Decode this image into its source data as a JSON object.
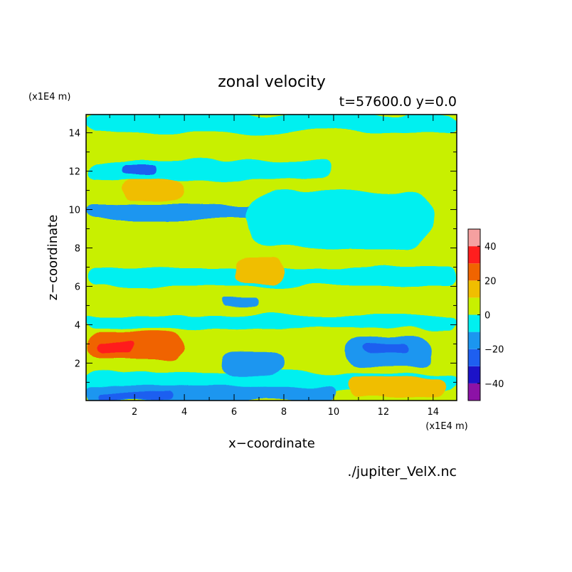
{
  "chart_data": {
    "type": "heatmap",
    "title": "zonal velocity",
    "subtitle": "t=57600.0 y=0.0",
    "xlabel": "x−coordinate",
    "ylabel": "z−coordinate",
    "x_unit": "(x1E4 m)",
    "y_unit": "(x1E4 m)",
    "source": "./jupiter_VelX.nc",
    "xlim": [
      0.05,
      14.95
    ],
    "ylim": [
      0.05,
      14.95
    ],
    "x_ticks": [
      "2",
      "4",
      "6",
      "8",
      "10",
      "12",
      "14"
    ],
    "y_ticks": [
      "2",
      "4",
      "6",
      "8",
      "10",
      "12",
      "14"
    ],
    "colorbar": {
      "levels": [
        -50,
        -40,
        -30,
        -20,
        -10,
        0,
        10,
        20,
        30,
        40,
        50
      ],
      "colors": [
        "#8c12a6",
        "#1c12c8",
        "#1e5ff0",
        "#1b96f0",
        "#00f0f0",
        "#c8f000",
        "#f0be00",
        "#f06400",
        "#ff1e1e",
        "#f5a0a0"
      ],
      "tick_labels": [
        "40",
        "20",
        "0",
        "−20",
        "−40"
      ]
    },
    "background_band": 0,
    "regions": [
      {
        "label": "band z 14-14.95",
        "value": -5,
        "x": [
          0.05,
          14.95
        ],
        "z": [
          14.0,
          14.95
        ]
      },
      {
        "label": "band z 12.5-14",
        "value": 5,
        "x": [
          0.05,
          14.95
        ],
        "z": [
          12.5,
          14.0
        ]
      },
      {
        "label": "band z 11.5-12.5",
        "value": -5,
        "x": [
          0.05,
          10.0
        ],
        "z": [
          11.5,
          12.5
        ]
      },
      {
        "label": "band z 9.5-10.3",
        "value": -15,
        "x": [
          0.05,
          7.0
        ],
        "z": [
          9.5,
          10.3
        ]
      },
      {
        "label": "band z 6-7",
        "value": -5,
        "x": [
          0.05,
          14.95
        ],
        "z": [
          6.0,
          7.0
        ]
      },
      {
        "label": "band z 3.8-4.5",
        "value": -5,
        "x": [
          0.05,
          14.95
        ],
        "z": [
          3.8,
          4.5
        ]
      },
      {
        "label": "band z 0.5-1.5",
        "value": -5,
        "x": [
          0.05,
          14.95
        ],
        "z": [
          0.5,
          1.5
        ]
      },
      {
        "label": "band z 0.05-0.8",
        "value": -15,
        "x": [
          0.05,
          10.0
        ],
        "z": [
          0.05,
          0.8
        ]
      },
      {
        "label": "core z 0.1-0.5",
        "value": -25,
        "x": [
          0.5,
          3.5
        ],
        "z": [
          0.1,
          0.5
        ]
      },
      {
        "label": "core z 2.2-3.6",
        "value": 25,
        "x": [
          0.05,
          4.0
        ],
        "z": [
          2.2,
          3.6
        ]
      },
      {
        "label": "core z 2.6-3.1",
        "value": 35,
        "x": [
          0.5,
          2.0
        ],
        "z": [
          2.6,
          3.1
        ]
      },
      {
        "label": "core z 1.3-2.6",
        "value": -15,
        "x": [
          5.5,
          8.0
        ],
        "z": [
          1.3,
          2.6
        ]
      },
      {
        "label": "core z 1.9-3.4",
        "value": -15,
        "x": [
          10.5,
          14.0
        ],
        "z": [
          1.9,
          3.4
        ]
      },
      {
        "label": "core z 2.5-3.0",
        "value": -25,
        "x": [
          11.2,
          13.0
        ],
        "z": [
          2.5,
          3.0
        ]
      },
      {
        "label": "core z 0.2-1.3",
        "value": 15,
        "x": [
          10.5,
          14.5
        ],
        "z": [
          0.2,
          1.3
        ]
      },
      {
        "label": "core z 10.5-11.5",
        "value": 15,
        "x": [
          1.5,
          4.0
        ],
        "z": [
          10.5,
          11.5
        ]
      },
      {
        "label": "core z 6.2-7.5",
        "value": 15,
        "x": [
          6.0,
          8.0
        ],
        "z": [
          6.2,
          7.5
        ]
      },
      {
        "label": "core z 4.9-5.3",
        "value": -15,
        "x": [
          5.5,
          7.0
        ],
        "z": [
          4.9,
          5.3
        ]
      },
      {
        "label": "core z 11.8-12.3",
        "value": -25,
        "x": [
          1.5,
          3.0
        ],
        "z": [
          11.8,
          12.3
        ]
      },
      {
        "label": "core z 8.0-11.0",
        "value": -5,
        "x": [
          6.5,
          14.0
        ],
        "z": [
          8.0,
          11.0
        ]
      }
    ]
  }
}
